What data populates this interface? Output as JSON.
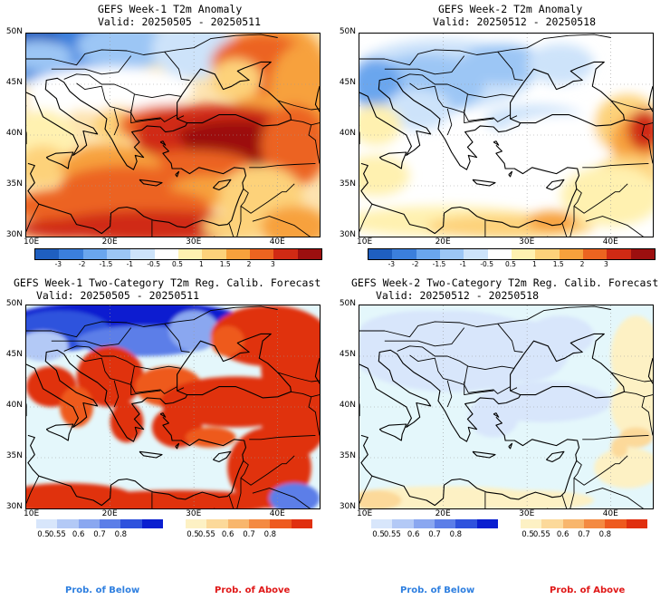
{
  "panels": [
    {
      "title": "GEFS Week-1 T2m Anomaly",
      "valid": "Valid: 20250505 - 20250511"
    },
    {
      "title": "GEFS Week-2 T2m Anomaly",
      "valid": "Valid: 20250512 - 20250518"
    },
    {
      "title": "GEFS Week-1 Two-Category T2m Reg. Calib. Forecast",
      "valid": "Valid: 20250505 - 20250511"
    },
    {
      "title": "GEFS Week-2 Two-Category T2m Reg. Calib. Forecast",
      "valid": "Valid: 20250512 - 20250518"
    }
  ],
  "lat_labels": [
    "50N",
    "45N",
    "40N",
    "35N",
    "30N"
  ],
  "lon_labels": [
    "10E",
    "20E",
    "30E",
    "40E"
  ],
  "anomaly_colorbar": {
    "ticks": [
      "-3",
      "-2",
      "-1.5",
      "-1",
      "-0.5",
      "0.5",
      "1",
      "1.5",
      "2",
      "3"
    ],
    "colors": [
      "#1f5fc0",
      "#3b7fdc",
      "#6aa6ee",
      "#9cc6f5",
      "#cde3fa",
      "#ffffff",
      "#fff1b0",
      "#fdd27a",
      "#f7a13c",
      "#ec6420",
      "#d02a14",
      "#9c0f0f"
    ]
  },
  "prob_below": {
    "ticks": [
      "0.5",
      "0.55",
      "0.6",
      "0.7",
      "0.8"
    ],
    "colors": [
      "#d8e6fb",
      "#b3c9f6",
      "#8aa7f0",
      "#5c7ee8",
      "#2f52dd",
      "#0a1fd0"
    ],
    "label": "Prob. of Below"
  },
  "prob_above": {
    "ticks": [
      "0.5",
      "0.55",
      "0.6",
      "0.7",
      "0.8"
    ],
    "colors": [
      "#fdf1c4",
      "#fcd99a",
      "#f8b66d",
      "#f48a42",
      "#ee5a1f",
      "#e03010"
    ],
    "label": "Prob. of Above"
  },
  "colors": {
    "sea_fill": "#e4f7fb",
    "gridline": "#888888",
    "coast": "#000000",
    "footer_below": "#2e7fe0",
    "footer_above": "#e01818"
  }
}
